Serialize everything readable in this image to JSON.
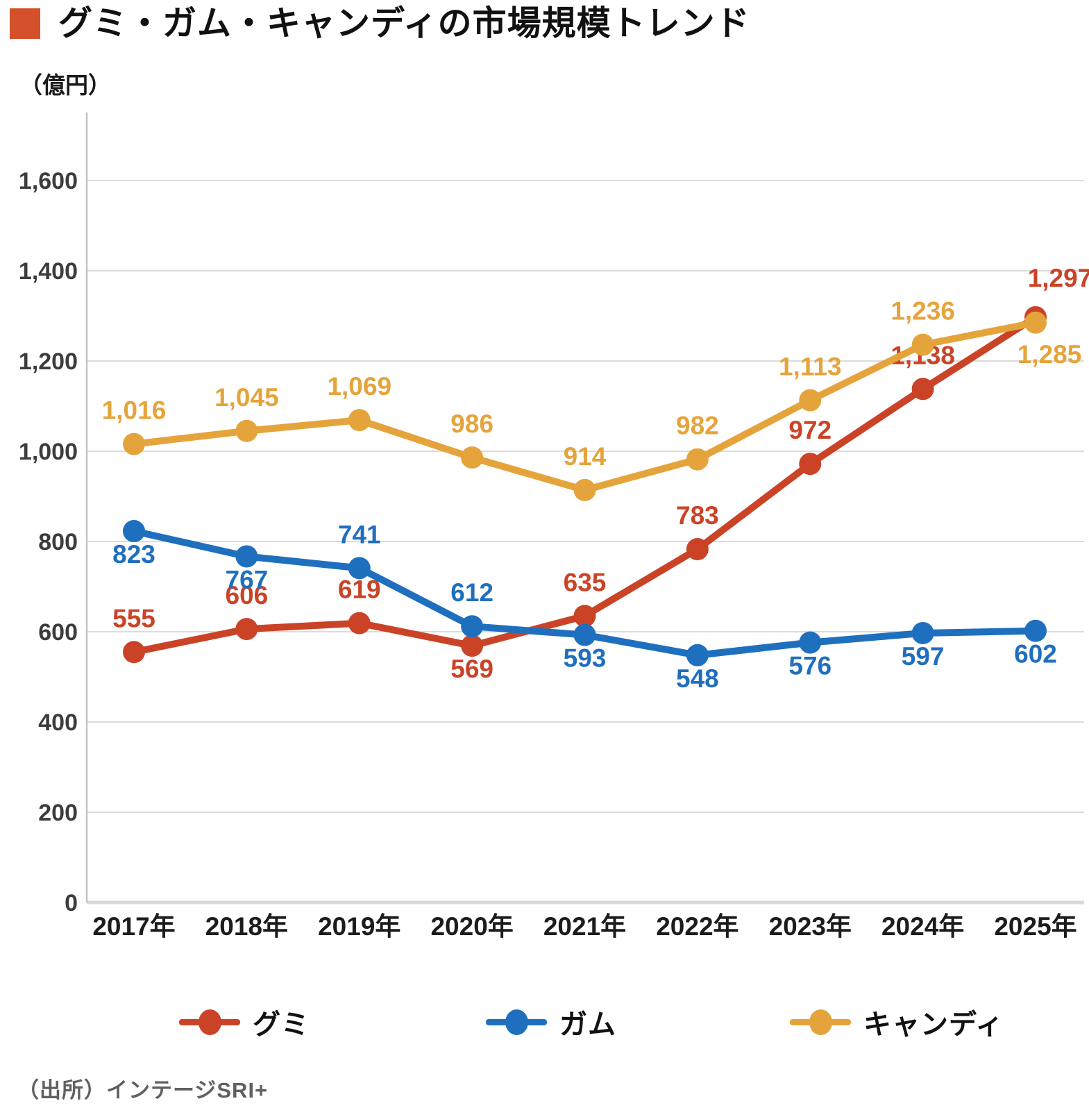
{
  "chart_data": {
    "type": "line",
    "title": "グミ・ガム・キャンディの市場規模トレンド",
    "unit_label": "（億円）",
    "source": "（出所）インテージSRI+",
    "categories": [
      "2017年",
      "2018年",
      "2019年",
      "2020年",
      "2021年",
      "2022年",
      "2023年",
      "2024年",
      "2025年"
    ],
    "y_tick_values": [
      0,
      200,
      400,
      600,
      800,
      1000,
      1200,
      1400,
      1600
    ],
    "y_tick_labels": [
      "0",
      "200",
      "400",
      "600",
      "800",
      "1,000",
      "1,200",
      "1,400",
      "1,600"
    ],
    "ylim": [
      0,
      1750
    ],
    "grid": "horizontal-only",
    "legend_position": "bottom",
    "series": [
      {
        "name": "グミ",
        "color": "#CB4327",
        "values": [
          555,
          606,
          619,
          569,
          635,
          783,
          972,
          1138,
          1297
        ],
        "labels": [
          "555",
          "606",
          "619",
          "569",
          "635",
          "783",
          "972",
          "1,138",
          "1,297"
        ],
        "label_pos": [
          "above",
          "above",
          "above",
          "below",
          "above",
          "above",
          "above",
          "above",
          "above"
        ],
        "label_dx": {
          "8": 35
        },
        "label_dy": {
          "8": -44
        }
      },
      {
        "name": "ガム",
        "color": "#1F6FBF",
        "values": [
          823,
          767,
          741,
          612,
          593,
          548,
          576,
          597,
          602
        ],
        "labels": [
          "823",
          "767",
          "741",
          "612",
          "593",
          "548",
          "576",
          "597",
          "602"
        ],
        "label_pos": [
          "below",
          "below",
          "above",
          "above",
          "below",
          "below",
          "below",
          "below",
          "below"
        ],
        "label_dx": {},
        "label_dy": {}
      },
      {
        "name": "キャンディ",
        "color": "#E5A43B",
        "values": [
          1016,
          1045,
          1069,
          986,
          914,
          982,
          1113,
          1236,
          1285
        ],
        "labels": [
          "1,016",
          "1,045",
          "1,069",
          "986",
          "914",
          "982",
          "1,113",
          "1,236",
          "1,285"
        ],
        "label_pos": [
          "above",
          "above",
          "above",
          "above",
          "above",
          "above",
          "above",
          "above",
          "below"
        ],
        "label_dx": {
          "8": 20
        },
        "label_dy": {
          "8": 58
        }
      }
    ],
    "colors": {
      "title_marker": "#D4502B",
      "gridline": "#DBDBDB",
      "axis_line": "#C4C4C4",
      "y_tick_text": "#3C3C3C",
      "x_tick_text": "#1C1C1C"
    }
  }
}
